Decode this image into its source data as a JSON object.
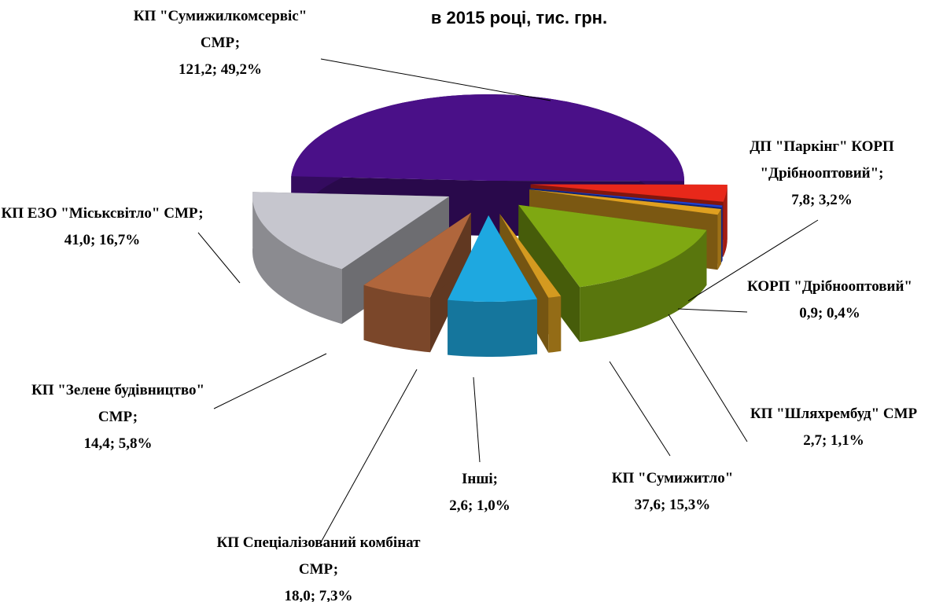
{
  "chart_data": {
    "type": "pie3d",
    "title": "в 2015 році, тис. грн.",
    "categories": [
      "КП \"Сумижилкомсервіс\" СМР;",
      "ДП \"Паркінг\" КОРП \"Дрібнооптовий\";",
      "КОРП \"Дрібнооптовий\"",
      "КП \"Шляхрембуд\" СМР",
      "КП \"Сумижитло\"",
      "Інші;",
      "КП Спеціалізований комбінат СМР;",
      "КП \"Зелене будівництво\" СМР;",
      "КП ЕЗО \"Міськсвітло\" СМР;"
    ],
    "values": [
      121.2,
      7.8,
      0.9,
      2.7,
      37.6,
      2.6,
      18.0,
      14.4,
      41.0
    ],
    "value_labels": [
      "121,2; 49,2%",
      "7,8; 3,2%",
      "0,9; 0,4%",
      "2,7; 1,1%",
      "37,6; 15,3%",
      "2,6; 1,0%",
      "18,0; 7,3%",
      "14,4; 5,8%",
      "41,0; 16,7%"
    ],
    "colors": [
      "#4a1088",
      "#e8281a",
      "#1f40d0",
      "#e0a020",
      "#7fa812",
      "#d49a20",
      "#1ea8e0",
      "#b0663c",
      "#c6c6ce"
    ]
  }
}
